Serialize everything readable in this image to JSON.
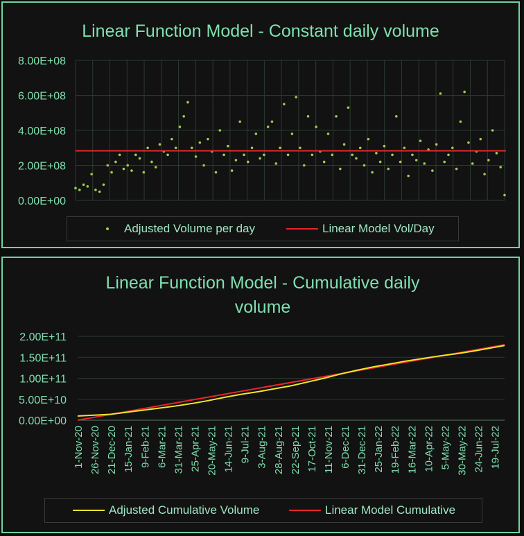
{
  "colors": {
    "background": "#121212",
    "border": "#6fd3a0",
    "text": "#7fe0b0",
    "scatter": "#9ccc52",
    "model": "#e8262c",
    "cumulative": "#f2e52a",
    "grid": "#2c3a30"
  },
  "chart_data": [
    {
      "type": "scatter",
      "title": "Linear Function Model - Constant daily volume",
      "ylim": [
        0,
        800000000
      ],
      "yticks": [
        "0.00E+00",
        "2.00E+08",
        "4.00E+08",
        "6.00E+08",
        "8.00E+08"
      ],
      "x_range": [
        "2020-11-01",
        "2022-08-10"
      ],
      "grid": "vertical and horizontal",
      "legend_position": "bottom",
      "series": [
        {
          "name": "Adjusted Volume per day",
          "kind": "points",
          "color": "#9ccc52",
          "x": [
            0,
            6,
            12,
            18,
            24,
            30,
            36,
            42,
            48,
            54,
            60,
            66,
            72,
            78,
            84,
            90,
            96,
            102,
            108,
            114,
            120,
            126,
            132,
            138,
            144,
            150,
            156,
            162,
            168,
            174,
            180,
            186,
            192,
            198,
            204,
            210,
            216,
            222,
            228,
            234,
            240,
            246,
            252,
            258,
            264,
            270,
            276,
            282,
            288,
            294,
            300,
            306,
            312,
            318,
            324,
            330,
            336,
            342,
            348,
            354,
            360,
            366,
            372,
            378,
            384,
            390,
            396,
            402,
            408,
            414,
            420,
            426,
            432,
            438,
            444,
            450,
            456,
            462,
            468,
            474,
            480,
            486,
            492,
            498,
            504,
            510,
            516,
            522,
            528,
            534,
            540,
            546,
            552,
            558,
            564,
            570,
            576,
            582,
            588,
            594,
            600,
            606,
            612,
            618,
            624,
            630,
            636,
            642
          ],
          "y": [
            70000000,
            60000000,
            90000000,
            80000000,
            150000000,
            60000000,
            50000000,
            90000000,
            200000000,
            160000000,
            220000000,
            260000000,
            180000000,
            200000000,
            170000000,
            260000000,
            240000000,
            160000000,
            300000000,
            220000000,
            190000000,
            320000000,
            280000000,
            260000000,
            350000000,
            300000000,
            420000000,
            480000000,
            560000000,
            300000000,
            250000000,
            330000000,
            200000000,
            350000000,
            280000000,
            160000000,
            400000000,
            260000000,
            310000000,
            170000000,
            230000000,
            450000000,
            260000000,
            220000000,
            300000000,
            380000000,
            240000000,
            260000000,
            420000000,
            450000000,
            210000000,
            300000000,
            550000000,
            260000000,
            380000000,
            590000000,
            300000000,
            200000000,
            480000000,
            260000000,
            420000000,
            280000000,
            220000000,
            380000000,
            260000000,
            480000000,
            180000000,
            320000000,
            530000000,
            260000000,
            240000000,
            300000000,
            200000000,
            350000000,
            160000000,
            270000000,
            220000000,
            310000000,
            180000000,
            260000000,
            480000000,
            220000000,
            300000000,
            140000000,
            260000000,
            230000000,
            340000000,
            210000000,
            290000000,
            170000000,
            320000000,
            610000000,
            220000000,
            260000000,
            300000000,
            180000000,
            450000000,
            620000000,
            330000000,
            210000000,
            280000000,
            350000000,
            150000000,
            230000000,
            400000000,
            270000000,
            190000000,
            30000000
          ]
        },
        {
          "name": "Linear Model Vol/Day",
          "kind": "line",
          "color": "#e8262c",
          "value": 283000000
        }
      ]
    },
    {
      "type": "line",
      "title": "Linear Function Model - Cumulative daily volume",
      "ylim": [
        0,
        200000000000
      ],
      "yticks": [
        "0.00E+00",
        "5.00E+10",
        "1.00E+11",
        "1.50E+11",
        "2.00E+11"
      ],
      "categories": [
        "1-Nov-20",
        "26-Nov-20",
        "21-Dec-20",
        "15-Jan-21",
        "9-Feb-21",
        "6-Mar-21",
        "31-Mar-21",
        "25-Apr-21",
        "20-May-21",
        "14-Jun-21",
        "9-Jul-21",
        "3-Aug-21",
        "28-Aug-21",
        "22-Sep-21",
        "17-Oct-21",
        "11-Nov-21",
        "6-Dec-21",
        "31-Dec-21",
        "25-Jan-22",
        "19-Feb-22",
        "16-Mar-22",
        "10-Apr-22",
        "5-May-22",
        "30-May-22",
        "24-Jun-22",
        "19-Jul-22"
      ],
      "legend_position": "bottom",
      "series": [
        {
          "name": "Adjusted Cumulative Volume",
          "color": "#f2e52a",
          "x": [
            0,
            25,
            50,
            75,
            100,
            125,
            150,
            175,
            200,
            225,
            250,
            275,
            300,
            325,
            350,
            375,
            400,
            425,
            450,
            475,
            500,
            525,
            550,
            575,
            600,
            625,
            650
          ],
          "values": [
            10000000000,
            12000000000,
            14000000000,
            19000000000,
            24000000000,
            29000000000,
            34000000000,
            40000000000,
            47000000000,
            55000000000,
            62000000000,
            68000000000,
            75000000000,
            82000000000,
            91000000000,
            100000000000,
            110000000000,
            119000000000,
            127000000000,
            134000000000,
            141000000000,
            147000000000,
            153000000000,
            158000000000,
            164000000000,
            171000000000,
            178000000000
          ]
        },
        {
          "name": "Linear Model Cumulative",
          "color": "#e8262c",
          "x": [
            0,
            650
          ],
          "values": [
            0,
            180000000000
          ]
        }
      ]
    }
  ]
}
